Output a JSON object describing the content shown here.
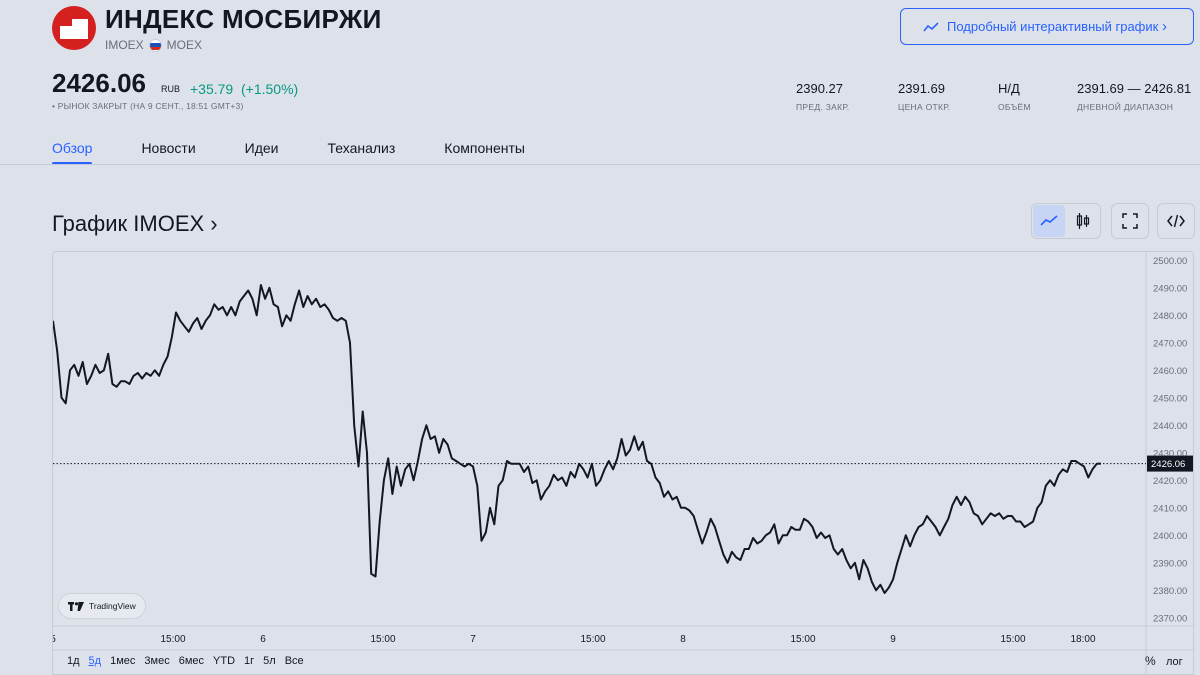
{
  "header": {
    "title": "ИНДЕКС МОСБИРЖИ",
    "ticker": "IMOEX",
    "exchange": "MOEX",
    "interactive_chart_button": "Подробный интерактивный график",
    "price": "2426.06",
    "currency": "RUB",
    "change": "+35.79",
    "change_pct": "(+1.50%)",
    "status": "• РЫНОК ЗАКРЫТ (НА 9 СЕНТ., 18:51 GMT+3)"
  },
  "stats": [
    {
      "value": "2390.27",
      "label": "ПРЕД. ЗАКР."
    },
    {
      "value": "2391.69",
      "label": "ЦЕНА ОТКР."
    },
    {
      "value": "Н/Д",
      "label": "ОБЪЁМ"
    },
    {
      "value": "2391.69 — 2426.81",
      "label": "ДНЕВНОЙ ДИАПАЗОН"
    }
  ],
  "tabs": [
    "Обзор",
    "Новости",
    "Идеи",
    "Теханализ",
    "Компоненты"
  ],
  "chart_section": {
    "title": "График IMOEX ›",
    "attribution": "TradingView",
    "ranges": [
      "1д",
      "5д",
      "1мес",
      "3мес",
      "6мес",
      "YTD",
      "1г",
      "5л",
      "Все"
    ],
    "active_range": "5д",
    "percent_toggle": "%",
    "log_toggle": "лог"
  },
  "chart_data": {
    "type": "line",
    "ylim": [
      2367,
      2503
    ],
    "y_ticks": [
      2370,
      2380,
      2390,
      2400,
      2410,
      2420,
      2430,
      2440,
      2450,
      2460,
      2470,
      2480,
      2490,
      2500
    ],
    "x_ticks": [
      "5",
      "15:00",
      "6",
      "15:00",
      "7",
      "15:00",
      "8",
      "15:00",
      "9",
      "15:00",
      "18:00"
    ],
    "last_value": "2426.06",
    "last_line_value": 2426.06,
    "grid": false,
    "line_color": "#131722",
    "series": [
      {
        "values": [
          2478,
          2467,
          2450,
          2448,
          2460,
          2462,
          2458,
          2463,
          2455,
          2458,
          2462,
          2459,
          2460,
          2466,
          2455,
          2454,
          2456,
          2456,
          2455,
          2458,
          2459,
          2457,
          2459,
          2458,
          2460,
          2458,
          2462,
          2465,
          2472,
          2481,
          2478,
          2476,
          2474,
          2477,
          2479,
          2475,
          2478,
          2480,
          2484,
          2482,
          2483,
          2480,
          2483,
          2480,
          2485,
          2487,
          2489,
          2486,
          2480,
          2491,
          2486,
          2490,
          2484,
          2483,
          2476,
          2480,
          2478,
          2484,
          2489,
          2483,
          2487,
          2484,
          2486,
          2483,
          2484,
          2482,
          2479,
          2478,
          2479,
          2478,
          2470,
          2440,
          2425,
          2445,
          2430,
          2386,
          2385,
          2405,
          2420,
          2428,
          2415,
          2425,
          2418,
          2424,
          2426,
          2420,
          2427,
          2435,
          2440,
          2435,
          2436,
          2430,
          2435,
          2433,
          2428,
          2427,
          2426,
          2425,
          2426,
          2425,
          2418,
          2398,
          2401,
          2410,
          2404,
          2418,
          2420,
          2427,
          2426,
          2426,
          2426,
          2423,
          2425,
          2419,
          2420,
          2413,
          2416,
          2418,
          2422,
          2420,
          2421,
          2418,
          2423,
          2421,
          2426,
          2424,
          2421,
          2426,
          2418,
          2420,
          2424,
          2427,
          2424,
          2428,
          2435,
          2429,
          2431,
          2436,
          2431,
          2434,
          2427,
          2426,
          2421,
          2419,
          2414,
          2416,
          2413,
          2414,
          2410,
          2410,
          2409,
          2407,
          2402,
          2397,
          2401,
          2406,
          2403,
          2398,
          2393,
          2390,
          2394,
          2392,
          2391,
          2395,
          2395,
          2399,
          2397,
          2398,
          2400,
          2401,
          2404,
          2397,
          2400,
          2400,
          2403,
          2402,
          2402,
          2406,
          2405,
          2403,
          2399,
          2401,
          2399,
          2400,
          2395,
          2393,
          2395,
          2391,
          2388,
          2390,
          2384,
          2391,
          2388,
          2383,
          2380,
          2382,
          2379,
          2381,
          2384,
          2390,
          2395,
          2400,
          2396,
          2400,
          2403,
          2404,
          2407,
          2405,
          2403,
          2400,
          2403,
          2406,
          2411,
          2414,
          2411,
          2414,
          2412,
          2408,
          2407,
          2404,
          2406,
          2408,
          2407,
          2408,
          2406,
          2407,
          2407,
          2405,
          2405,
          2403,
          2404,
          2405,
          2410,
          2412,
          2418,
          2420,
          2418,
          2422,
          2424,
          2423,
          2427,
          2427,
          2426,
          2425,
          2421,
          2424,
          2426,
          2426.06
        ]
      }
    ]
  }
}
